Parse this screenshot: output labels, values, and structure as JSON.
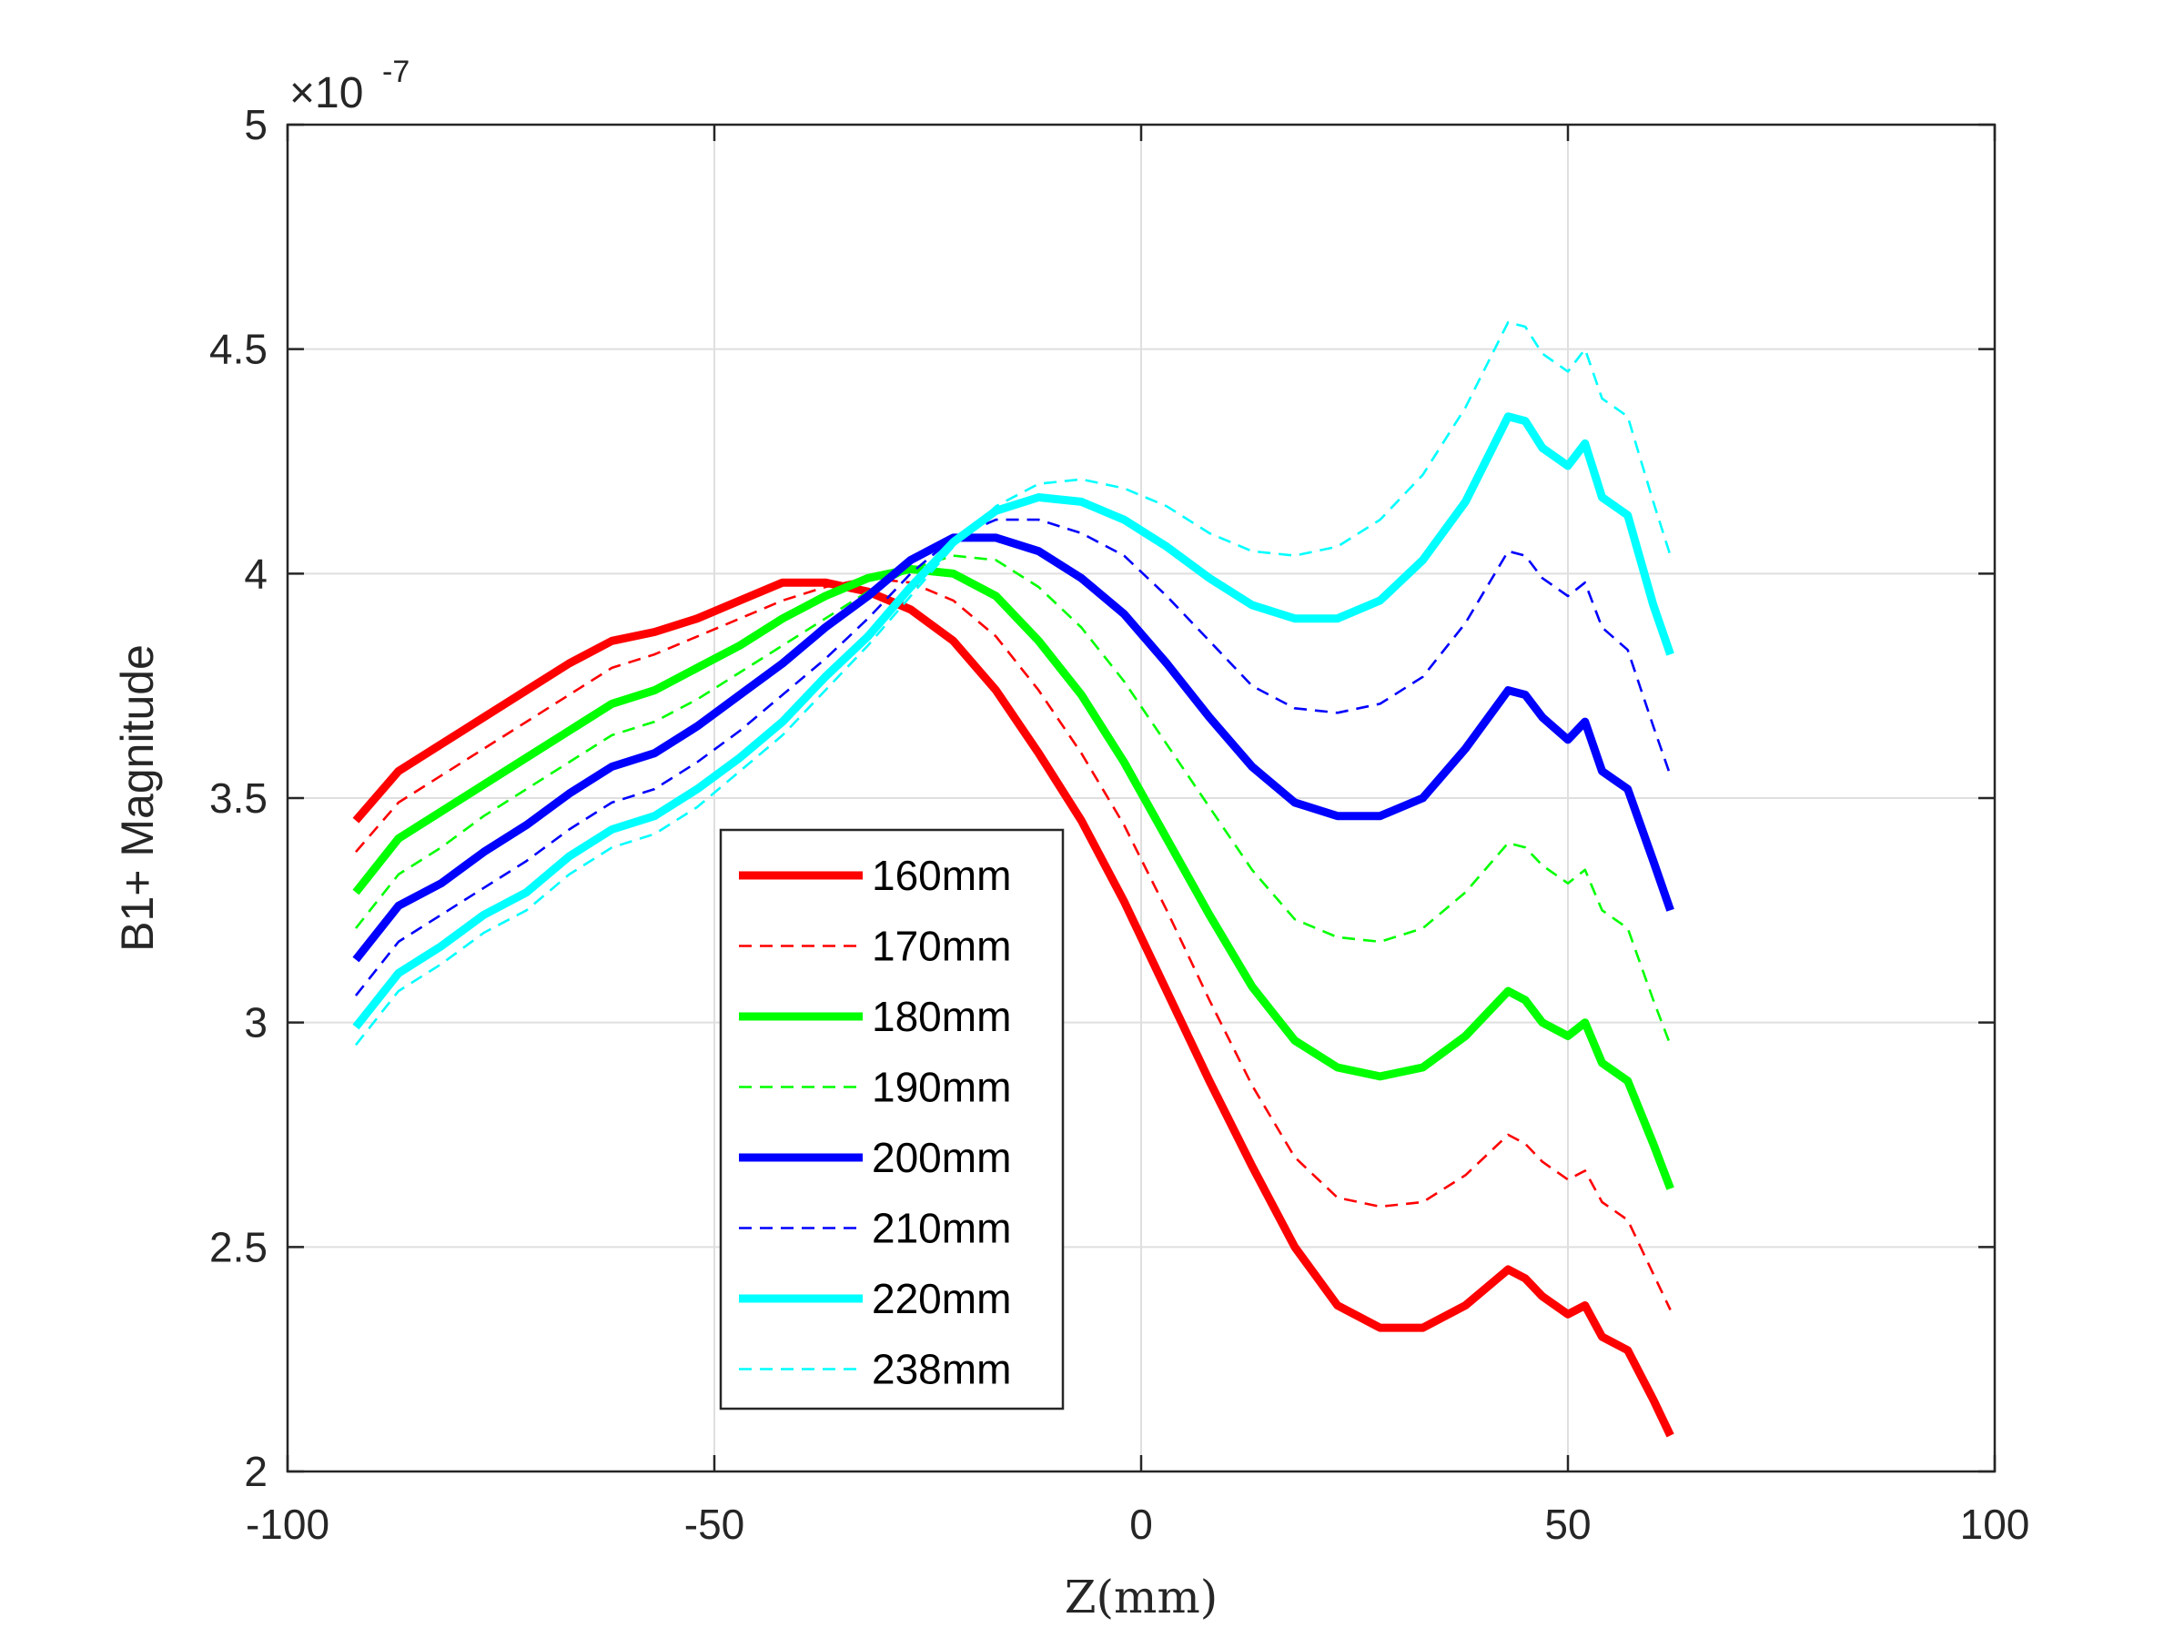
{
  "chart_data": {
    "type": "line",
    "title": "",
    "xlabel": "Z(mm)",
    "ylabel": "B1+ Magnitude",
    "xlim": [
      -100,
      100
    ],
    "ylim": [
      2,
      5
    ],
    "xticks": [
      -100,
      -50,
      0,
      50,
      100
    ],
    "yticks": [
      2,
      2.5,
      3,
      3.5,
      4,
      4.5,
      5
    ],
    "xtick_labels": [
      "-100",
      "-50",
      "0",
      "50",
      "100"
    ],
    "ytick_labels": [
      "2",
      "2.5",
      "3",
      "3.5",
      "4",
      "4.5",
      "5"
    ],
    "y_exponent": {
      "base": "×10",
      "power": "-7"
    },
    "grid": true,
    "legend_position": "lower-center",
    "x": [
      -92,
      -87,
      -82,
      -77,
      -72,
      -67,
      -62,
      -57,
      -52,
      -47,
      -42,
      -37,
      -32,
      -27,
      -22,
      -17,
      -12,
      -7,
      -2,
      3,
      8,
      13,
      18,
      23,
      28,
      33,
      38,
      43,
      45,
      47,
      50,
      52,
      54,
      57,
      60,
      62
    ],
    "series": [
      {
        "name": "160mm",
        "color": "#ff0000",
        "style": "solid",
        "values": [
          3.45,
          3.56,
          3.62,
          3.68,
          3.74,
          3.8,
          3.85,
          3.87,
          3.9,
          3.94,
          3.98,
          3.98,
          3.96,
          3.92,
          3.85,
          3.74,
          3.6,
          3.45,
          3.27,
          3.07,
          2.87,
          2.68,
          2.5,
          2.37,
          2.32,
          2.32,
          2.37,
          2.45,
          2.43,
          2.39,
          2.35,
          2.37,
          2.3,
          2.27,
          2.16,
          2.08
        ]
      },
      {
        "name": "170mm",
        "color": "#ff0000",
        "style": "dashed",
        "values": [
          3.38,
          3.49,
          3.55,
          3.61,
          3.67,
          3.73,
          3.79,
          3.82,
          3.86,
          3.9,
          3.94,
          3.97,
          3.99,
          3.98,
          3.94,
          3.86,
          3.74,
          3.6,
          3.44,
          3.25,
          3.05,
          2.86,
          2.7,
          2.61,
          2.59,
          2.6,
          2.66,
          2.75,
          2.73,
          2.69,
          2.65,
          2.67,
          2.6,
          2.56,
          2.44,
          2.36
        ]
      },
      {
        "name": "180mm",
        "color": "#00ff00",
        "style": "solid",
        "values": [
          3.29,
          3.41,
          3.47,
          3.53,
          3.59,
          3.65,
          3.71,
          3.74,
          3.79,
          3.84,
          3.9,
          3.95,
          3.99,
          4.01,
          4.0,
          3.95,
          3.85,
          3.73,
          3.58,
          3.41,
          3.24,
          3.08,
          2.96,
          2.9,
          2.88,
          2.9,
          2.97,
          3.07,
          3.05,
          3.0,
          2.97,
          3.0,
          2.91,
          2.87,
          2.73,
          2.63
        ]
      },
      {
        "name": "190mm",
        "color": "#00ff00",
        "style": "dashed",
        "values": [
          3.21,
          3.33,
          3.39,
          3.46,
          3.52,
          3.58,
          3.64,
          3.67,
          3.72,
          3.78,
          3.84,
          3.9,
          3.96,
          4.01,
          4.04,
          4.03,
          3.97,
          3.88,
          3.76,
          3.62,
          3.48,
          3.34,
          3.23,
          3.19,
          3.18,
          3.21,
          3.29,
          3.4,
          3.39,
          3.35,
          3.31,
          3.34,
          3.25,
          3.21,
          3.05,
          2.95
        ]
      },
      {
        "name": "200mm",
        "color": "#0000ff",
        "style": "solid",
        "values": [
          3.14,
          3.26,
          3.31,
          3.38,
          3.44,
          3.51,
          3.57,
          3.6,
          3.66,
          3.73,
          3.8,
          3.88,
          3.95,
          4.03,
          4.08,
          4.08,
          4.05,
          3.99,
          3.91,
          3.8,
          3.68,
          3.57,
          3.49,
          3.46,
          3.46,
          3.5,
          3.61,
          3.74,
          3.73,
          3.68,
          3.63,
          3.67,
          3.56,
          3.52,
          3.36,
          3.25
        ]
      },
      {
        "name": "210mm",
        "color": "#0000ff",
        "style": "dashed",
        "values": [
          3.06,
          3.18,
          3.24,
          3.3,
          3.36,
          3.43,
          3.49,
          3.52,
          3.58,
          3.65,
          3.73,
          3.81,
          3.9,
          4.0,
          4.08,
          4.12,
          4.12,
          4.09,
          4.04,
          3.95,
          3.85,
          3.75,
          3.7,
          3.69,
          3.71,
          3.77,
          3.89,
          4.05,
          4.04,
          3.99,
          3.95,
          3.98,
          3.88,
          3.83,
          3.66,
          3.55
        ]
      },
      {
        "name": "220mm",
        "color": "#00ffff",
        "style": "solid",
        "values": [
          2.99,
          3.11,
          3.17,
          3.24,
          3.29,
          3.37,
          3.43,
          3.46,
          3.52,
          3.59,
          3.67,
          3.77,
          3.86,
          3.97,
          4.07,
          4.14,
          4.17,
          4.16,
          4.12,
          4.06,
          3.99,
          3.93,
          3.9,
          3.9,
          3.94,
          4.03,
          4.16,
          4.35,
          4.34,
          4.28,
          4.24,
          4.29,
          4.17,
          4.13,
          3.93,
          3.82
        ]
      },
      {
        "name": "238mm",
        "color": "#00ffff",
        "style": "dashed",
        "values": [
          2.95,
          3.07,
          3.13,
          3.2,
          3.25,
          3.33,
          3.39,
          3.42,
          3.48,
          3.56,
          3.64,
          3.74,
          3.84,
          3.95,
          4.06,
          4.15,
          4.2,
          4.21,
          4.19,
          4.15,
          4.09,
          4.05,
          4.04,
          4.06,
          4.12,
          4.22,
          4.37,
          4.56,
          4.55,
          4.49,
          4.45,
          4.5,
          4.39,
          4.35,
          4.16,
          4.04
        ]
      }
    ]
  }
}
